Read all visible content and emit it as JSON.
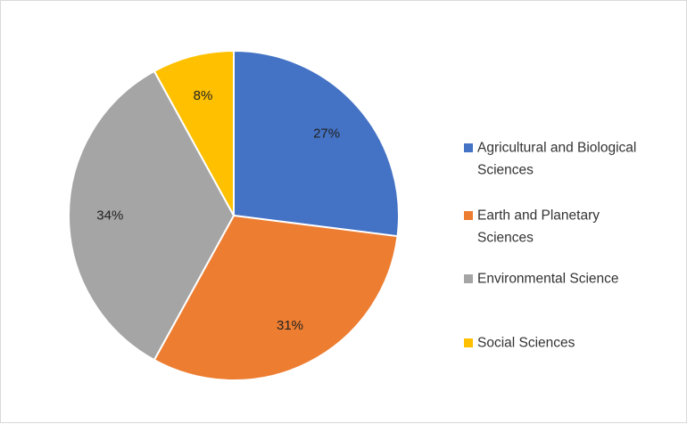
{
  "chart_data": {
    "type": "pie",
    "categories": [
      "Agricultural and Biological Sciences",
      "Earth and Planetary Sciences",
      "Environmental Science",
      "Social Sciences"
    ],
    "values": [
      27,
      31,
      34,
      8
    ],
    "data_labels": [
      "27%",
      "31%",
      "34%",
      "8%"
    ],
    "colors": [
      "#4472C4",
      "#ED7D31",
      "#A5A5A5",
      "#FFC000"
    ],
    "legend": {
      "placement": "right",
      "entries": [
        {
          "lines": [
            "Agricultural and Biological",
            "Sciences"
          ],
          "color": "#4472C4"
        },
        {
          "lines": [
            "Earth and Planetary",
            "Sciences"
          ],
          "color": "#ED7D31"
        },
        {
          "lines": [
            "Environmental Science"
          ],
          "color": "#A5A5A5"
        },
        {
          "lines": [
            "Social Sciences"
          ],
          "color": "#FFC000"
        }
      ]
    }
  }
}
